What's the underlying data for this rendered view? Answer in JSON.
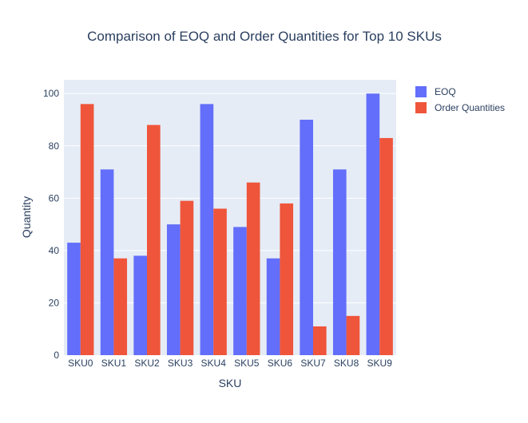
{
  "chart_data": {
    "type": "bar",
    "title": "Comparison of EOQ and Order Quantities for Top 10 SKUs",
    "xlabel": "SKU",
    "ylabel": "Quantity",
    "categories": [
      "SKU0",
      "SKU1",
      "SKU2",
      "SKU3",
      "SKU4",
      "SKU5",
      "SKU6",
      "SKU7",
      "SKU8",
      "SKU9"
    ],
    "series": [
      {
        "name": "EOQ",
        "color": "#636efa",
        "values": [
          43,
          71,
          38,
          50,
          96,
          49,
          37,
          90,
          71,
          100
        ]
      },
      {
        "name": "Order Quantities",
        "color": "#ef553b",
        "values": [
          96,
          37,
          88,
          59,
          56,
          66,
          58,
          11,
          15,
          83
        ]
      }
    ],
    "ylim": [
      0,
      105.26
    ],
    "yticks": [
      0,
      20,
      40,
      60,
      80,
      100
    ],
    "grid": true,
    "legend_position": "top-right",
    "plot_background": "#e5ecf6"
  }
}
